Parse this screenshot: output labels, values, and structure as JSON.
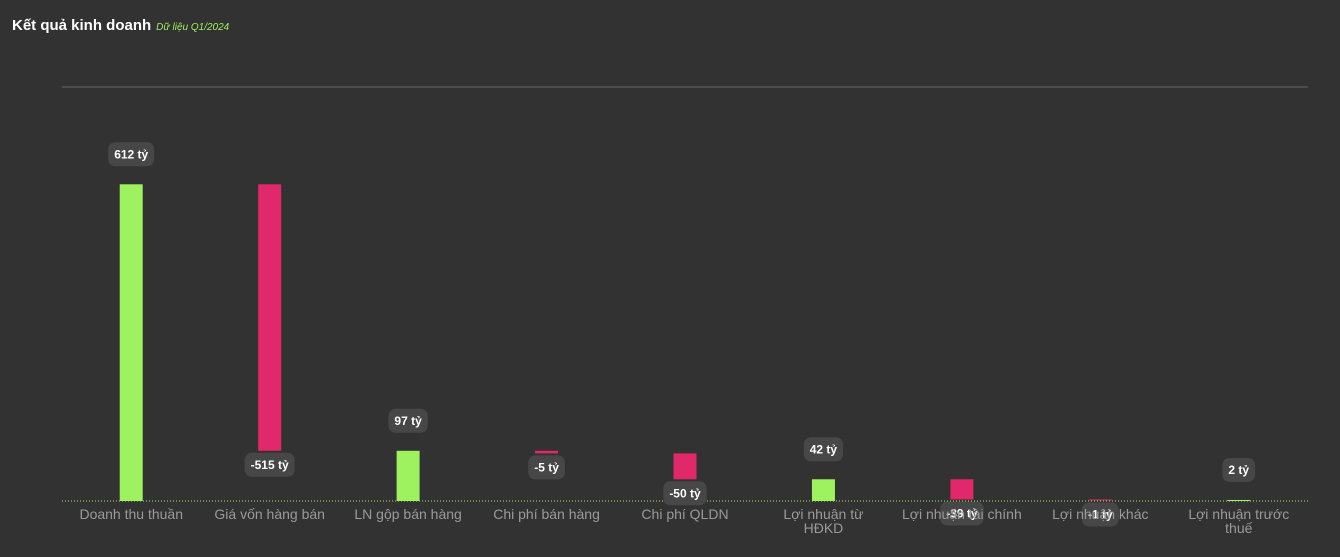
{
  "chart_data": {
    "type": "waterfall",
    "title": "Kết quả kinh doanh",
    "subtitle": "Dữ liệu Q1/2024",
    "categories": [
      "Doanh thu thuần",
      "Giá vốn hàng bán",
      "LN gộp bán hàng",
      "Chi phí bán hàng",
      "Chi phí QLDN",
      "Lợi nhuận từ HĐKD",
      "Lợi nhuận tài chính",
      "Lợi nhuận khác",
      "Lợi nhuận trước thuế"
    ],
    "values": [
      612,
      -515,
      97,
      -5,
      -50,
      42,
      -39,
      -1,
      2
    ],
    "value_labels": [
      "612 tỷ",
      "-515 tỷ",
      "97 tỷ",
      "-5 tỷ",
      "-50 tỷ",
      "42 tỷ",
      "-39 tỷ",
      "-1 tỷ",
      "2 tỷ"
    ],
    "positive_color": "#9ef15f",
    "negative_color": "#e0286a",
    "ylim": [
      0,
      800
    ]
  }
}
